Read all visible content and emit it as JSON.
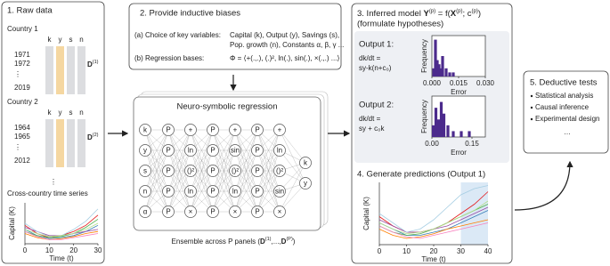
{
  "panel1": {
    "title": "1. Raw data",
    "countries": [
      {
        "name": "Country 1",
        "variables": [
          "k",
          "y",
          "s",
          "n"
        ],
        "years": [
          "1971",
          "1972",
          "⋮",
          "2019"
        ],
        "matrix": {
          "base": "D",
          "sup": "(1)"
        }
      },
      {
        "name": "Country 2",
        "variables": [
          "k",
          "y",
          "s",
          "n"
        ],
        "years": [
          "1964",
          "1965",
          "⋮",
          "2012"
        ],
        "matrix": {
          "base": "D",
          "sup": "(2)"
        }
      }
    ],
    "more": "⋮",
    "chart": {
      "type": "line",
      "title": "Cross-country time series",
      "y_label": "Capital (K)",
      "x_label": "Time (t)",
      "x": [
        0,
        5,
        10,
        15,
        20,
        25,
        30
      ],
      "xlim": [
        0,
        30
      ],
      "xticks": [
        0,
        10,
        20,
        30
      ],
      "ylim": [
        0,
        20
      ],
      "series": [
        {
          "color": "#e41a1c",
          "values": [
            9,
            5,
            3,
            4,
            6,
            9,
            14
          ]
        },
        {
          "color": "#377eb8",
          "values": [
            7,
            4,
            2.5,
            3,
            4,
            6,
            9
          ]
        },
        {
          "color": "#4daf4a",
          "values": [
            6,
            4,
            3,
            3.5,
            5,
            8,
            12
          ]
        },
        {
          "color": "#984ea3",
          "values": [
            8,
            6,
            4,
            4,
            5,
            6,
            7
          ]
        },
        {
          "color": "#ff7f00",
          "values": [
            5,
            3,
            2,
            2.5,
            3.5,
            5,
            6
          ]
        },
        {
          "color": "#a6cee3",
          "values": [
            10,
            6,
            3.5,
            4,
            7,
            11,
            17
          ]
        },
        {
          "color": "#f781bf",
          "values": [
            6,
            3.5,
            2,
            2,
            3,
            4,
            5
          ]
        },
        {
          "color": "#b2df8a",
          "values": [
            7,
            5,
            3.5,
            4,
            5,
            7,
            10
          ]
        }
      ]
    }
  },
  "panel2": {
    "title": "2. Provide inductive biases",
    "a_label": "(a) Choice of key variables:",
    "a_text": [
      "Capital (k), Output (y), Savings (s),",
      "Pop. growth (n), Constants α, β, γ ..."
    ],
    "b_label": "(b) Regression bases:",
    "b_text": "Φ = ⟨+(.,.), (.)², ln(.), sin(.), ×(.,.) ...⟩",
    "network": {
      "title": "Neuro-symbolic regression",
      "inputs": [
        "k",
        "y",
        "s",
        "n",
        "α"
      ],
      "layers": [
        [
          "P",
          "P",
          "P",
          "P",
          "P"
        ],
        [
          "+",
          "ln",
          "()²",
          "ln",
          "×"
        ],
        [
          "P",
          "P",
          "P",
          "P",
          "P"
        ],
        [
          "+",
          "sin",
          "()²",
          "ln",
          "×"
        ],
        [
          "P",
          "P",
          "P",
          "P",
          "P"
        ],
        [
          "+",
          "ln",
          "()²",
          "sin",
          "×"
        ]
      ],
      "outputs": [
        "k",
        "y"
      ],
      "ensemble": [
        "Ensemble across P panels (",
        "D",
        "(1)",
        ",...,",
        "D",
        "(P)",
        ")"
      ]
    }
  },
  "panel3": {
    "title_parts": [
      "3. Inferred model ",
      "Y",
      "(p)",
      " = f(",
      "X",
      "(p)",
      "; c",
      "(p)",
      ")"
    ],
    "subtitle": "(formulate hypotheses)",
    "outputs": [
      {
        "label": "Output 1:",
        "equation": [
          "dk/dt =",
          "sy-k(n+c₀)"
        ],
        "hist": {
          "type": "bar",
          "y_label": "Frequency",
          "x_label": "Error",
          "x": [
            0.001,
            0.002,
            0.003,
            0.004,
            0.005,
            0.006,
            0.008,
            0.01,
            0.012
          ],
          "values": [
            2,
            9,
            4,
            3,
            2,
            5,
            2,
            1,
            1
          ],
          "xlim": [
            0,
            0.03
          ],
          "ylim": [
            0,
            10
          ],
          "xticks": [
            {
              "value": 0,
              "label": "0.000"
            },
            {
              "value": 0.015,
              "label": "0.015"
            },
            {
              "value": 0.03,
              "label": "0.030"
            }
          ]
        }
      },
      {
        "label": "Output 2:",
        "equation": [
          "dk/dt =",
          "sy + c₀k"
        ],
        "hist": {
          "type": "bar",
          "y_label": "Frequency",
          "x_label": "Error",
          "x": [
            0.005,
            0.015,
            0.025,
            0.035,
            0.045,
            0.06,
            0.08,
            0.11,
            0.14
          ],
          "values": [
            2,
            5,
            3,
            6,
            4,
            2,
            1,
            1,
            1
          ],
          "xlim": [
            0,
            0.2
          ],
          "ylim": [
            0,
            7
          ],
          "xticks": [
            {
              "value": 0,
              "label": "0.00"
            },
            {
              "value": 0.15,
              "label": "0.15"
            }
          ]
        }
      }
    ]
  },
  "panel4": {
    "title": "4. Generate predictions (Output 1)",
    "chart": {
      "type": "line",
      "y_label": "Capital (K)",
      "x_label": "Time (t)",
      "x": [
        0,
        5,
        10,
        15,
        20,
        25,
        30,
        35,
        40
      ],
      "xlim": [
        0,
        40
      ],
      "xticks": [
        0,
        10,
        20,
        30,
        40
      ],
      "ylim": [
        0,
        20
      ],
      "forecast_range": [
        30,
        40
      ],
      "series": [
        {
          "color": "#e41a1c",
          "values": [
            9,
            6,
            4,
            4,
            5,
            7,
            10,
            13,
            17
          ]
        },
        {
          "color": "#377eb8",
          "values": [
            7,
            5,
            3,
            3,
            4,
            5,
            7,
            9,
            11
          ]
        },
        {
          "color": "#4daf4a",
          "values": [
            6,
            4,
            3,
            3.5,
            5,
            7,
            9,
            11,
            13
          ]
        },
        {
          "color": "#984ea3",
          "values": [
            8,
            6,
            4,
            4,
            5,
            6,
            8,
            10,
            12
          ]
        },
        {
          "color": "#ff7f00",
          "values": [
            5,
            3,
            2,
            2.5,
            3.5,
            5,
            6,
            7,
            8
          ]
        },
        {
          "color": "#a6cee3",
          "values": [
            10,
            7,
            4,
            5,
            8,
            12,
            16,
            18,
            19
          ]
        },
        {
          "color": "#f781bf",
          "values": [
            6,
            4,
            2.5,
            2,
            3,
            4,
            5,
            6,
            7
          ]
        },
        {
          "color": "#b2df8a",
          "values": [
            7,
            5,
            3.5,
            4,
            5,
            7,
            9,
            11,
            14
          ]
        }
      ]
    }
  },
  "panel5": {
    "title": "5. Deductive tests",
    "items": [
      "Statistical analysis",
      "Causal inference",
      "Experimental design"
    ],
    "more": "…"
  }
}
